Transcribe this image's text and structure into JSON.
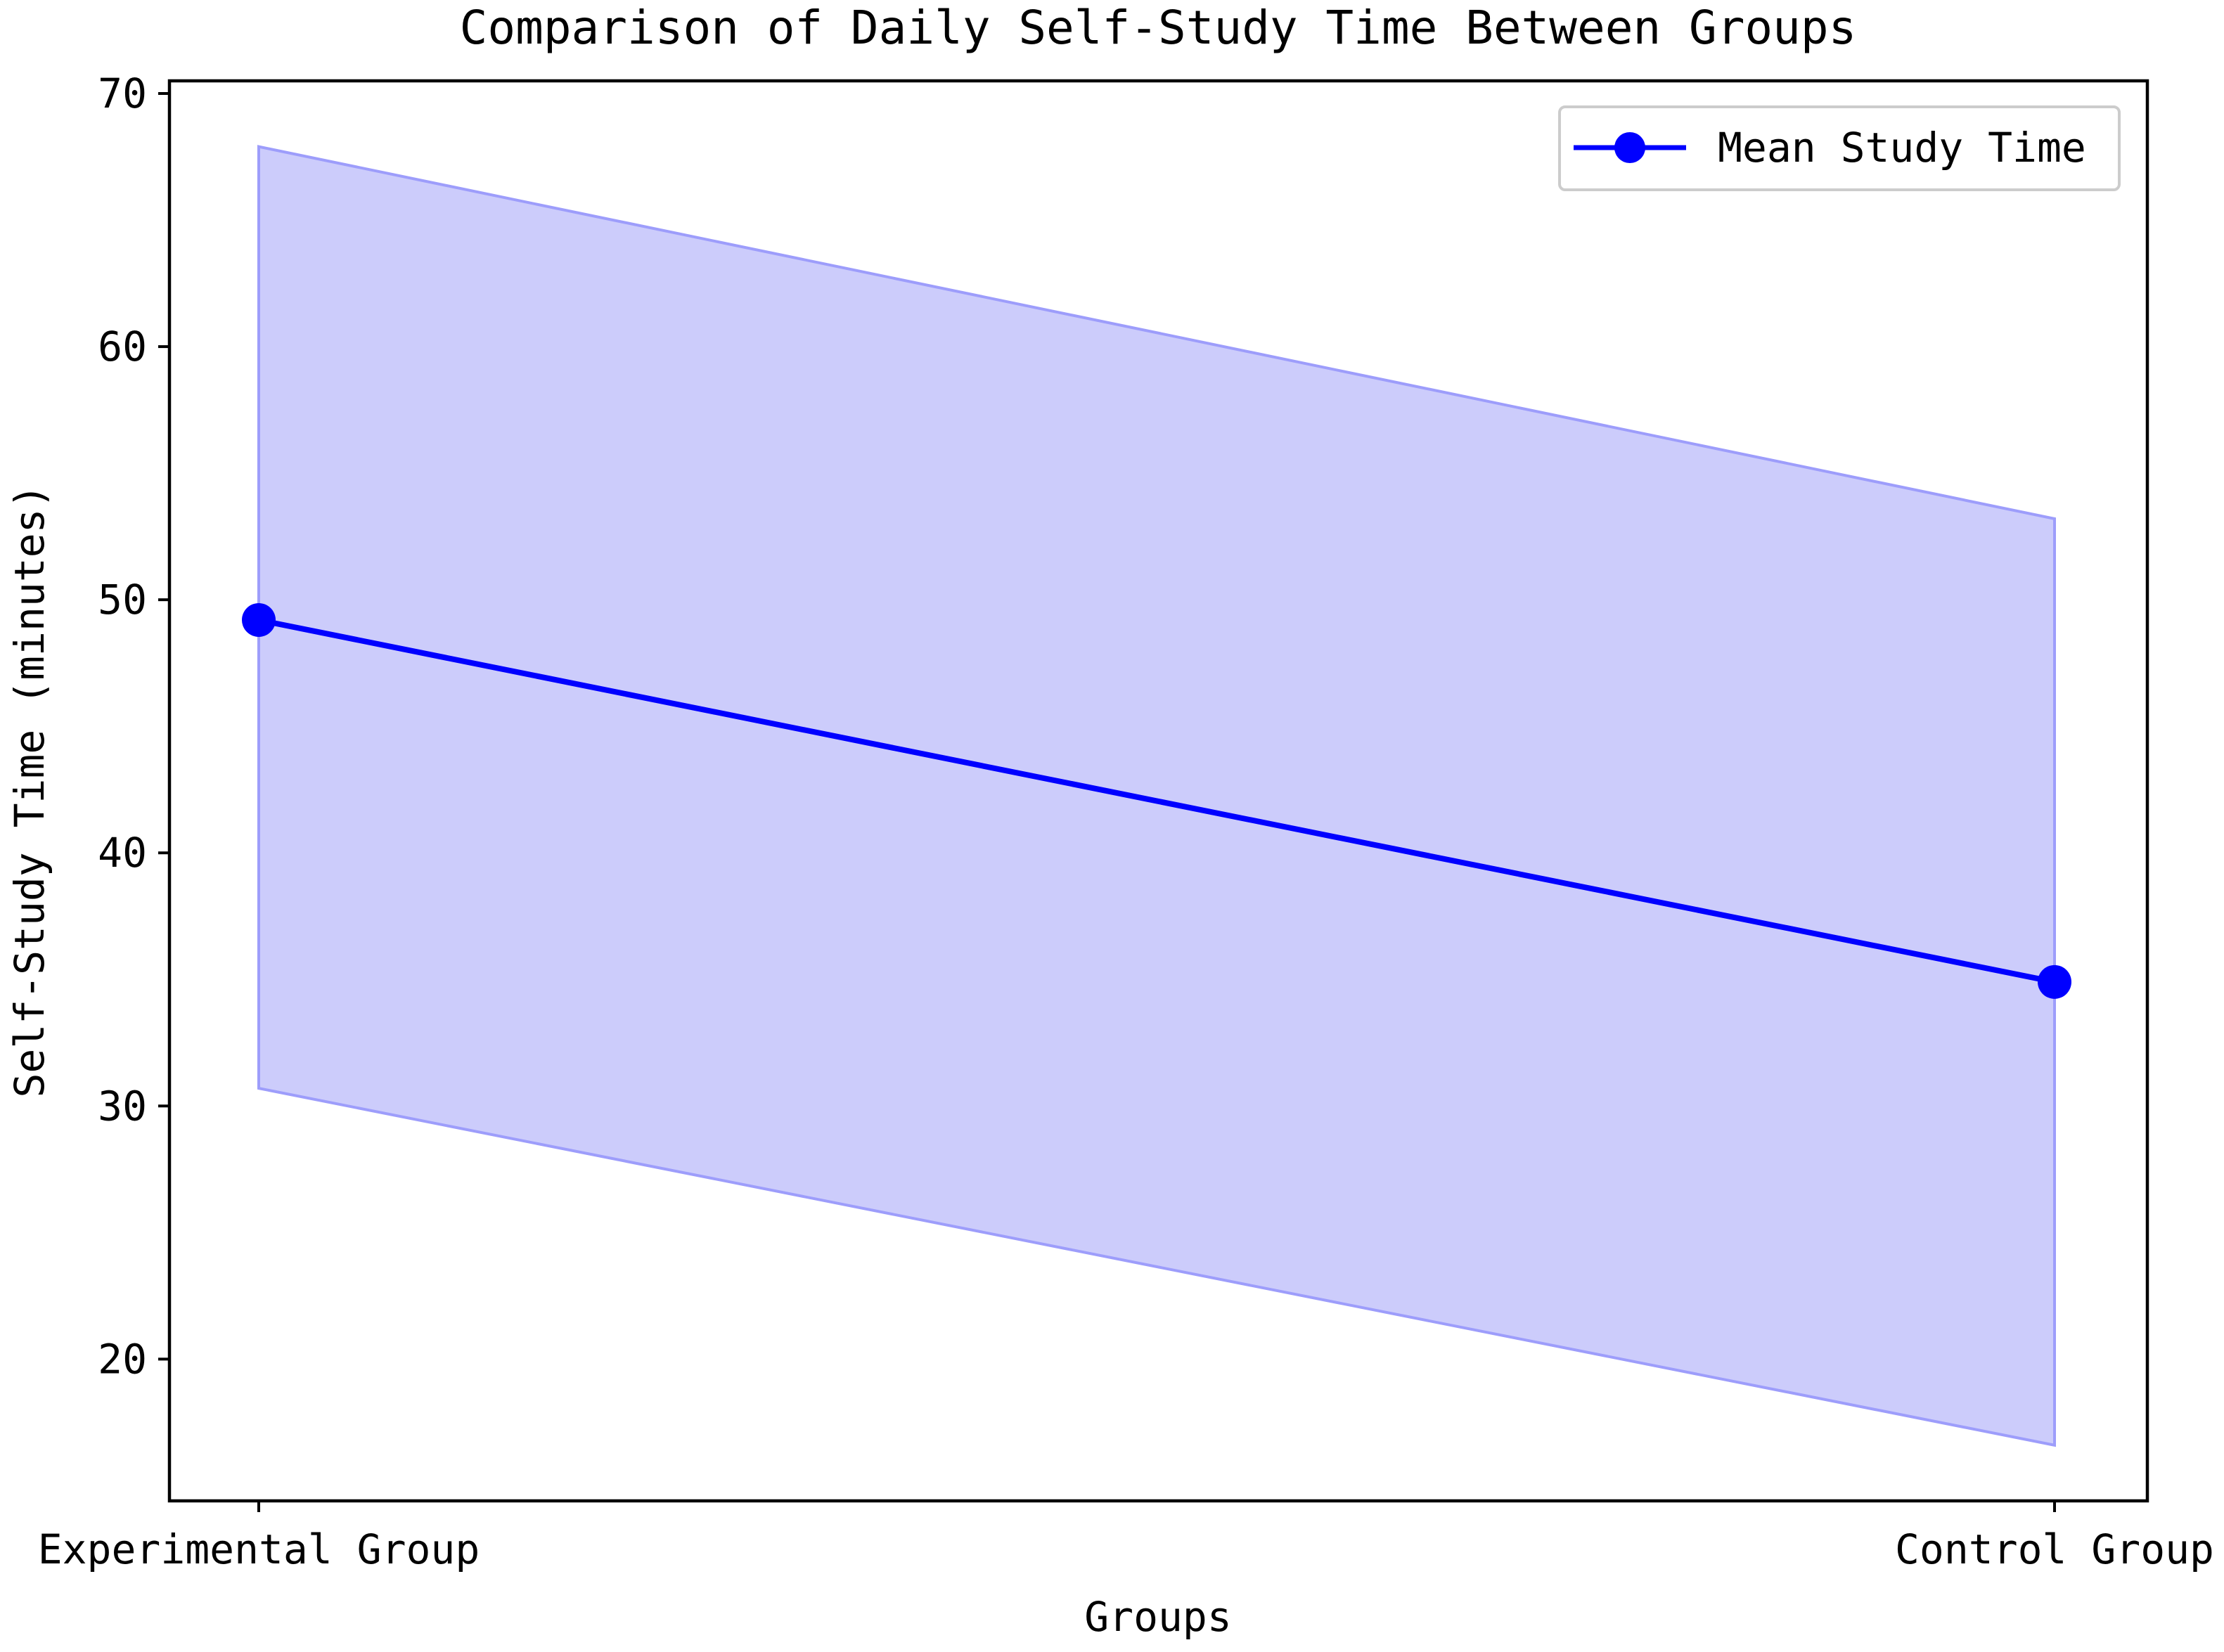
{
  "chart_data": {
    "type": "line",
    "title": "Comparison of Daily Self-Study Time Between Groups",
    "xlabel": "Groups",
    "ylabel": "Self-Study Time (minutes)",
    "categories": [
      "Experimental Group",
      "Control Group"
    ],
    "series": [
      {
        "name": "Mean Study Time",
        "values": [
          49.2,
          34.9
        ],
        "lower": [
          30.7,
          16.6
        ],
        "upper": [
          67.9,
          53.2
        ],
        "color": "#0000ff",
        "band_color": "#ccccfb",
        "band_edge_color": "#9d9dfb"
      }
    ],
    "ylim": [
      14.4,
      70.5
    ],
    "yticks": [
      20,
      30,
      40,
      50,
      60,
      70
    ],
    "grid": false,
    "legend": "top-right"
  }
}
